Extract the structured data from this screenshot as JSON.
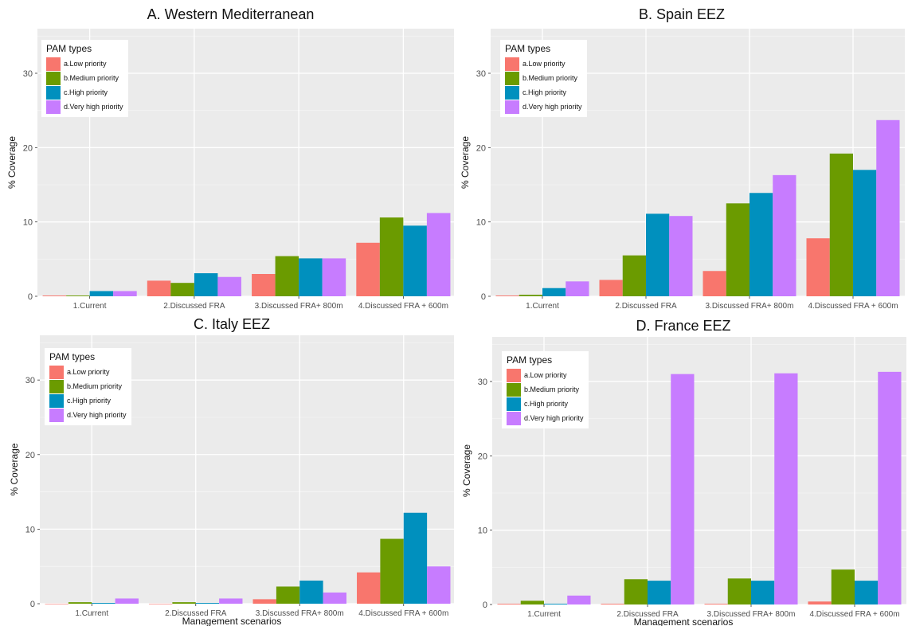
{
  "legend": {
    "title": "PAM types",
    "entries": [
      "a.Low priority",
      "b.Medium priority",
      "c.High priority",
      "d.Very high priority"
    ]
  },
  "colors": [
    "#F8766D",
    "#6B9B00",
    "#0090BE",
    "#C77CFF"
  ],
  "chart_data": [
    {
      "type": "bar",
      "title": "A. Western Mediterranean",
      "xlabel": "",
      "ylabel": "% Coverage",
      "ylim": [
        0,
        36
      ],
      "yticks": [
        0,
        10,
        20,
        30
      ],
      "categories": [
        "1.Current",
        "2.Discussed FRA",
        "3.Discussed FRA+ 800m",
        "4.Discussed FRA + 600m"
      ],
      "series": [
        {
          "name": "a.Low priority",
          "values": [
            0.1,
            2.1,
            3.0,
            7.2
          ]
        },
        {
          "name": "b.Medium priority",
          "values": [
            0.1,
            1.8,
            5.4,
            10.6
          ]
        },
        {
          "name": "c.High priority",
          "values": [
            0.7,
            3.1,
            5.1,
            9.5
          ]
        },
        {
          "name": "d.Very high priority",
          "values": [
            0.7,
            2.6,
            5.1,
            11.2
          ]
        }
      ],
      "legend_position": "top-left"
    },
    {
      "type": "bar",
      "title": "B. Spain EEZ",
      "xlabel": "",
      "ylabel": "% Coverage",
      "ylim": [
        0,
        36
      ],
      "yticks": [
        0,
        10,
        20,
        30
      ],
      "categories": [
        "1.Current",
        "2.Discussed FRA",
        "3.Discussed FRA+ 800m",
        "4.Discussed FRA + 600m"
      ],
      "series": [
        {
          "name": "a.Low priority",
          "values": [
            0.1,
            2.2,
            3.4,
            7.8
          ]
        },
        {
          "name": "b.Medium priority",
          "values": [
            0.2,
            5.5,
            12.5,
            19.2
          ]
        },
        {
          "name": "c.High priority",
          "values": [
            1.1,
            11.1,
            13.9,
            17.0
          ]
        },
        {
          "name": "d.Very high priority",
          "values": [
            2.0,
            10.8,
            16.3,
            23.7
          ]
        }
      ],
      "legend_position": "top-left"
    },
    {
      "type": "bar",
      "title": "C. Italy EEZ",
      "xlabel": "Management scenarios",
      "ylabel": "% Coverage",
      "ylim": [
        0,
        36
      ],
      "yticks": [
        0,
        10,
        20,
        30
      ],
      "categories": [
        "1.Current",
        "2.Discussed FRA",
        "3.Discussed FRA+ 800m",
        "4.Discussed FRA + 600m"
      ],
      "series": [
        {
          "name": "a.Low priority",
          "values": [
            0.0,
            0.0,
            0.6,
            4.2
          ]
        },
        {
          "name": "b.Medium priority",
          "values": [
            0.2,
            0.2,
            2.3,
            8.7
          ]
        },
        {
          "name": "c.High priority",
          "values": [
            0.1,
            0.1,
            3.1,
            12.2
          ]
        },
        {
          "name": "d.Very high priority",
          "values": [
            0.7,
            0.7,
            1.5,
            5.0
          ]
        }
      ],
      "legend_position": "top-left"
    },
    {
      "type": "bar",
      "title": "D. France EEZ",
      "xlabel": "Management scenarios",
      "ylabel": "% Coverage",
      "ylim": [
        0,
        36
      ],
      "yticks": [
        0,
        10,
        20,
        30
      ],
      "categories": [
        "1.Current",
        "2.Discussed FRA",
        "3.Discussed FRA+ 800m",
        "4.Discussed FRA + 600m"
      ],
      "series": [
        {
          "name": "a.Low priority",
          "values": [
            0.1,
            0.1,
            0.1,
            0.4
          ]
        },
        {
          "name": "b.Medium priority",
          "values": [
            0.5,
            3.4,
            3.5,
            4.7
          ]
        },
        {
          "name": "c.High priority",
          "values": [
            0.1,
            3.2,
            3.2,
            3.2
          ]
        },
        {
          "name": "d.Very high priority",
          "values": [
            1.2,
            31.0,
            31.1,
            31.3
          ]
        }
      ],
      "legend_position": "top-left"
    }
  ]
}
